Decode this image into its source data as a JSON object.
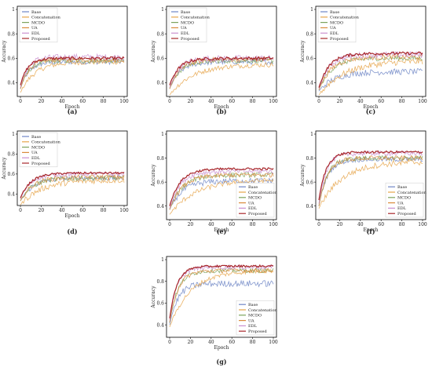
{
  "legend_labels": [
    "Base",
    "Concatenation",
    "MCDO",
    "UA",
    "EDL",
    "Proposed"
  ],
  "series_colors": [
    "#6f86c6",
    "#e6a54a",
    "#7ca35c",
    "#d98a3a",
    "#c98fcf",
    "#a8272b"
  ],
  "xlabel": "Epoch",
  "ylabel": "Accuracy",
  "x_ticks": [
    0,
    20,
    40,
    60,
    80,
    100
  ],
  "chart_data": [
    {
      "type": "line",
      "panel": "(a)",
      "legend_position": "upper-left",
      "xlim": [
        0,
        100
      ],
      "ylim": [
        0.3,
        1.0
      ],
      "y_ticks": [
        "0.4",
        "0.6",
        "0.8",
        "1"
      ],
      "xlabel": "Epoch",
      "ylabel": "Accuracy",
      "series": [
        {
          "name": "Base",
          "start": 0.35,
          "plateau": 0.57,
          "rise": 8,
          "noise": 0.02
        },
        {
          "name": "Concatenation",
          "start": 0.32,
          "plateau": 0.57,
          "rise": 14,
          "noise": 0.02
        },
        {
          "name": "MCDO",
          "start": 0.35,
          "plateau": 0.58,
          "rise": 8,
          "noise": 0.02
        },
        {
          "name": "UA",
          "start": 0.35,
          "plateau": 0.59,
          "rise": 8,
          "noise": 0.02
        },
        {
          "name": "EDL",
          "start": 0.36,
          "plateau": 0.61,
          "rise": 7,
          "noise": 0.025
        },
        {
          "name": "Proposed",
          "start": 0.38,
          "plateau": 0.6,
          "rise": 7,
          "noise": 0.012
        }
      ]
    },
    {
      "type": "line",
      "panel": "(b)",
      "legend_position": "upper-left",
      "xlim": [
        0,
        100
      ],
      "ylim": [
        0.3,
        1.0
      ],
      "y_ticks": [
        "0.4",
        "0.6",
        "0.8",
        "1"
      ],
      "xlabel": "Epoch",
      "ylabel": "Accuracy",
      "series": [
        {
          "name": "Base",
          "start": 0.35,
          "plateau": 0.57,
          "rise": 10,
          "noise": 0.02
        },
        {
          "name": "Concatenation",
          "start": 0.3,
          "plateau": 0.55,
          "rise": 22,
          "noise": 0.02
        },
        {
          "name": "MCDO",
          "start": 0.35,
          "plateau": 0.58,
          "rise": 10,
          "noise": 0.02
        },
        {
          "name": "UA",
          "start": 0.35,
          "plateau": 0.59,
          "rise": 10,
          "noise": 0.02
        },
        {
          "name": "EDL",
          "start": 0.36,
          "plateau": 0.6,
          "rise": 9,
          "noise": 0.025
        },
        {
          "name": "Proposed",
          "start": 0.38,
          "plateau": 0.6,
          "rise": 9,
          "noise": 0.012
        }
      ]
    },
    {
      "type": "line",
      "panel": "(c)",
      "legend_position": "upper-left",
      "xlim": [
        0,
        100
      ],
      "ylim": [
        0.3,
        1.0
      ],
      "y_ticks": [
        "0.4",
        "0.6",
        "0.8",
        "1"
      ],
      "xlabel": "Epoch",
      "ylabel": "Accuracy",
      "series": [
        {
          "name": "Base",
          "start": 0.33,
          "plateau": 0.49,
          "rise": 15,
          "noise": 0.025
        },
        {
          "name": "Concatenation",
          "start": 0.3,
          "plateau": 0.58,
          "rise": 25,
          "noise": 0.025
        },
        {
          "name": "MCDO",
          "start": 0.34,
          "plateau": 0.6,
          "rise": 12,
          "noise": 0.02
        },
        {
          "name": "UA",
          "start": 0.34,
          "plateau": 0.61,
          "rise": 12,
          "noise": 0.02
        },
        {
          "name": "EDL",
          "start": 0.35,
          "plateau": 0.63,
          "rise": 10,
          "noise": 0.025
        },
        {
          "name": "Proposed",
          "start": 0.36,
          "plateau": 0.64,
          "rise": 10,
          "noise": 0.012
        }
      ]
    },
    {
      "type": "line",
      "panel": "(d)",
      "legend_position": "upper-left",
      "xlim": [
        0,
        100
      ],
      "ylim": [
        0.3,
        1.0
      ],
      "y_ticks": [
        "0.4",
        "0.6",
        "0.8",
        "1"
      ],
      "xlabel": "Epoch",
      "ylabel": "Accuracy",
      "series": [
        {
          "name": "Base",
          "start": 0.33,
          "plateau": 0.56,
          "rise": 12,
          "noise": 0.025
        },
        {
          "name": "Concatenation",
          "start": 0.29,
          "plateau": 0.54,
          "rise": 20,
          "noise": 0.03
        },
        {
          "name": "MCDO",
          "start": 0.33,
          "plateau": 0.56,
          "rise": 12,
          "noise": 0.025
        },
        {
          "name": "UA",
          "start": 0.33,
          "plateau": 0.57,
          "rise": 12,
          "noise": 0.025
        },
        {
          "name": "EDL",
          "start": 0.35,
          "plateau": 0.6,
          "rise": 10,
          "noise": 0.02
        },
        {
          "name": "Proposed",
          "start": 0.36,
          "plateau": 0.61,
          "rise": 10,
          "noise": 0.01
        }
      ]
    },
    {
      "type": "line",
      "panel": "(e)",
      "legend_position": "lower-right",
      "xlim": [
        0,
        100
      ],
      "ylim": [
        0.3,
        1.0
      ],
      "y_ticks": [
        "0.4",
        "0.6",
        "0.8",
        "1"
      ],
      "xlabel": "Epoch",
      "ylabel": "Accuracy",
      "series": [
        {
          "name": "Base",
          "start": 0.37,
          "plateau": 0.61,
          "rise": 12,
          "noise": 0.025
        },
        {
          "name": "Concatenation",
          "start": 0.33,
          "plateau": 0.62,
          "rise": 25,
          "noise": 0.02
        },
        {
          "name": "MCDO",
          "start": 0.37,
          "plateau": 0.66,
          "rise": 12,
          "noise": 0.02
        },
        {
          "name": "UA",
          "start": 0.37,
          "plateau": 0.66,
          "rise": 12,
          "noise": 0.02
        },
        {
          "name": "EDL",
          "start": 0.38,
          "plateau": 0.69,
          "rise": 10,
          "noise": 0.02
        },
        {
          "name": "Proposed",
          "start": 0.4,
          "plateau": 0.71,
          "rise": 10,
          "noise": 0.01
        }
      ]
    },
    {
      "type": "line",
      "panel": "(f)",
      "legend_position": "lower-right",
      "xlim": [
        0,
        100
      ],
      "ylim": [
        0.3,
        1.0
      ],
      "y_ticks": [
        "0.4",
        "0.6",
        "0.8",
        "1"
      ],
      "xlabel": "Epoch",
      "ylabel": "Accuracy",
      "series": [
        {
          "name": "Base",
          "start": 0.4,
          "plateau": 0.79,
          "rise": 8,
          "noise": 0.02
        },
        {
          "name": "Concatenation",
          "start": 0.38,
          "plateau": 0.77,
          "rise": 22,
          "noise": 0.025
        },
        {
          "name": "MCDO",
          "start": 0.4,
          "plateau": 0.8,
          "rise": 8,
          "noise": 0.02
        },
        {
          "name": "UA",
          "start": 0.4,
          "plateau": 0.8,
          "rise": 8,
          "noise": 0.02
        },
        {
          "name": "EDL",
          "start": 0.42,
          "plateau": 0.84,
          "rise": 7,
          "noise": 0.02
        },
        {
          "name": "Proposed",
          "start": 0.45,
          "plateau": 0.85,
          "rise": 7,
          "noise": 0.01
        }
      ]
    },
    {
      "type": "line",
      "panel": "(g)",
      "legend_position": "lower-right",
      "xlim": [
        0,
        100
      ],
      "ylim": [
        0.3,
        1.0
      ],
      "y_ticks": [
        "0.4",
        "0.6",
        "0.8",
        "1"
      ],
      "xlabel": "Epoch",
      "ylabel": "Accuracy",
      "series": [
        {
          "name": "Base",
          "start": 0.4,
          "plateau": 0.78,
          "rise": 8,
          "noise": 0.03
        },
        {
          "name": "Concatenation",
          "start": 0.38,
          "plateau": 0.9,
          "rise": 20,
          "noise": 0.02
        },
        {
          "name": "MCDO",
          "start": 0.42,
          "plateau": 0.9,
          "rise": 8,
          "noise": 0.02
        },
        {
          "name": "UA",
          "start": 0.42,
          "plateau": 0.9,
          "rise": 8,
          "noise": 0.02
        },
        {
          "name": "EDL",
          "start": 0.44,
          "plateau": 0.93,
          "rise": 7,
          "noise": 0.02
        },
        {
          "name": "Proposed",
          "start": 0.46,
          "plateau": 0.94,
          "rise": 7,
          "noise": 0.01
        }
      ]
    }
  ]
}
